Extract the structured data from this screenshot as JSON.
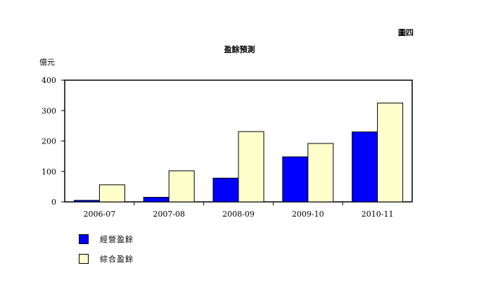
{
  "figure_label": "圖四",
  "chart_data": {
    "type": "bar",
    "title": "盈餘預測",
    "ylabel": "億元",
    "xlabel": "",
    "categories": [
      "2006-07",
      "2007-08",
      "2008-09",
      "2009-10",
      "2010-11"
    ],
    "ylim": [
      0,
      400
    ],
    "yticks": [
      0,
      100,
      200,
      300,
      400
    ],
    "grid": false,
    "legend_position": "bottom-left",
    "series": [
      {
        "name": "經營盈餘",
        "color": "#0000ff",
        "values": [
          5,
          15,
          78,
          148,
          230
        ]
      },
      {
        "name": "綜合盈餘",
        "color": "#ffffcc",
        "values": [
          56,
          102,
          231,
          192,
          325
        ]
      }
    ]
  }
}
